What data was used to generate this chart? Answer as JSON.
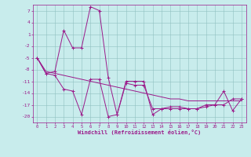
{
  "x": [
    0,
    1,
    2,
    3,
    4,
    5,
    6,
    7,
    8,
    9,
    10,
    11,
    12,
    13,
    14,
    15,
    16,
    17,
    18,
    19,
    20,
    21,
    22,
    23
  ],
  "line1": [
    -5,
    -9,
    -8.5,
    2,
    -2.5,
    -2.5,
    8,
    7,
    -10,
    -19.5,
    -11,
    -11,
    -11,
    -19.5,
    -18,
    -17.5,
    -17.5,
    -18,
    -18,
    -17,
    -17,
    -13.5,
    -18.5,
    -15.5
  ],
  "line2": [
    -5,
    -9,
    -9.5,
    -13,
    -13.5,
    -19.5,
    -10.5,
    -10.5,
    -20,
    -19.5,
    -11.5,
    -12,
    -12,
    -18,
    -18,
    -18,
    -18,
    -18,
    -18,
    -17.5,
    -17,
    -17,
    -15.5,
    -15.5
  ],
  "line3": [
    -5,
    -8.5,
    -9,
    -9.5,
    -10,
    -10.5,
    -11,
    -11.5,
    -12,
    -12.5,
    -13,
    -13.5,
    -14,
    -14.5,
    -15,
    -15.5,
    -15.5,
    -16,
    -16,
    -16,
    -16,
    -16,
    -16,
    -16
  ],
  "color": "#9b1a8a",
  "bgcolor": "#c8ecec",
  "xlabel": "Windchill (Refroidissement éolien,°C)",
  "yticks": [
    7,
    4,
    1,
    -2,
    -5,
    -8,
    -11,
    -14,
    -17,
    -20
  ],
  "xticks": [
    0,
    1,
    2,
    3,
    4,
    5,
    6,
    7,
    8,
    9,
    10,
    11,
    12,
    13,
    14,
    15,
    16,
    17,
    18,
    19,
    20,
    21,
    22,
    23
  ],
  "ylim": [
    -21.5,
    8.5
  ],
  "xlim": [
    -0.5,
    23.5
  ]
}
